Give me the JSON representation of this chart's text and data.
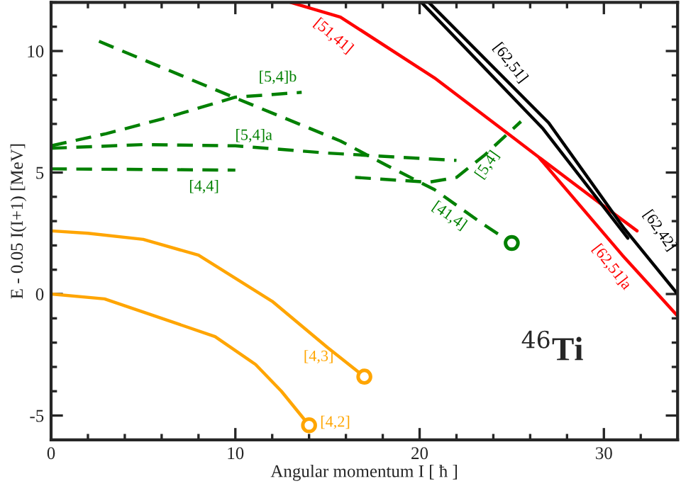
{
  "chart_data": {
    "type": "line",
    "xlabel": "Angular momentum I [ ħ ]",
    "ylabel": "E - 0.05 I(I+1) [MeV]",
    "xlim": [
      0,
      34
    ],
    "ylim": [
      -6,
      12
    ],
    "xticks": [
      0,
      10,
      20,
      30
    ],
    "yticks": [
      -5,
      0,
      5,
      10
    ],
    "grid": false,
    "legend": false,
    "annotations": [
      "$^{46}$Ti"
    ],
    "series": [
      {
        "name": "[4,2]",
        "color": "#ffa500",
        "line_style": "solid",
        "x": [
          0,
          2.9,
          8.9,
          11.1,
          12.5,
          14
        ],
        "values": [
          0,
          -0.2,
          -1.75,
          -2.9,
          -4.0,
          -5.4
        ]
      },
      {
        "name": "[4,3]",
        "color": "#ffa500",
        "line_style": "solid",
        "x": [
          0,
          2,
          5,
          8,
          12,
          15,
          17
        ],
        "values": [
          2.6,
          2.5,
          2.25,
          1.6,
          -0.3,
          -2.2,
          -3.4
        ]
      },
      {
        "name": "[4,4]",
        "color": "#008000",
        "line_style": "dashed",
        "x": [
          0,
          10
        ],
        "values": [
          5.15,
          5.1
        ]
      },
      {
        "name": "[5,4]a",
        "color": "#008000",
        "line_style": "dashed",
        "x": [
          0,
          5,
          10,
          15,
          22
        ],
        "values": [
          6.0,
          6.15,
          6.1,
          5.8,
          5.5
        ]
      },
      {
        "name": "[5,4]b",
        "color": "#008000",
        "line_style": "dashed",
        "x": [
          0,
          3,
          6,
          10,
          13.6
        ],
        "values": [
          6.1,
          6.6,
          7.2,
          8.1,
          8.3
        ]
      },
      {
        "name": "[41,4]",
        "color": "#008000",
        "line_style": "dashed",
        "x": [
          2.6,
          9.9,
          15.7,
          18.2,
          20.8,
          23.4,
          25
        ],
        "values": [
          10.4,
          8.1,
          6.3,
          5.3,
          4.3,
          2.9,
          2.1
        ]
      },
      {
        "name": "[5,4]",
        "color": "#008000",
        "line_style": "dashed",
        "x": [
          16.5,
          20.5,
          22,
          23.5,
          25.5
        ],
        "values": [
          4.8,
          4.6,
          4.8,
          5.7,
          7.1
        ]
      },
      {
        "name": "[51,41]",
        "color": "#ff0000",
        "line_style": "solid",
        "x": [
          13,
          15.7,
          20.8,
          24.8,
          26.7,
          29.5,
          31.8
        ],
        "values": [
          12,
          11.4,
          8.9,
          6.6,
          5.5,
          3.9,
          2.6
        ]
      },
      {
        "name": "[62,51]a",
        "color": "#ff0000",
        "line_style": "solid",
        "x": [
          26.5,
          31,
          34
        ],
        "values": [
          5.6,
          1.6,
          -0.9
        ]
      },
      {
        "name": "[62,51]",
        "color": "#000000",
        "line_style": "solid",
        "x": [
          20.1,
          26.7,
          31.3
        ],
        "values": [
          12,
          6.8,
          2.3
        ]
      },
      {
        "name": "[62,42]",
        "color": "#000000",
        "line_style": "solid",
        "x": [
          20.5,
          27,
          31.1,
          34
        ],
        "values": [
          12,
          7.05,
          2.7,
          0
        ]
      },
      {
        "type": "scatter",
        "marker": "circle",
        "color": "#ffa500",
        "x": [
          14,
          17
        ],
        "values": [
          -5.4,
          -3.4
        ]
      },
      {
        "type": "scatter",
        "marker": "circle",
        "color": "#008000",
        "x": [
          25
        ],
        "values": [
          2.1
        ]
      }
    ]
  }
}
